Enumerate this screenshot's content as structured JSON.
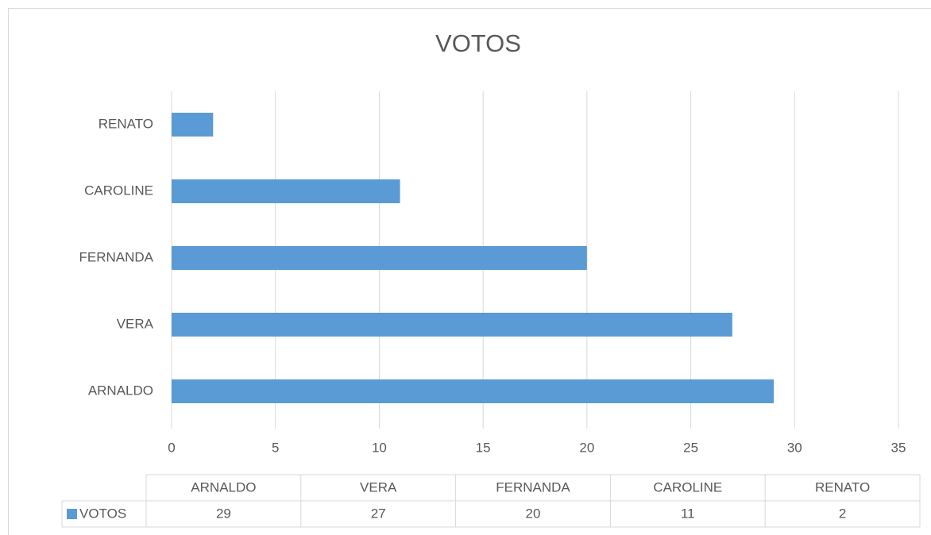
{
  "chart_data": {
    "type": "bar",
    "orientation": "horizontal",
    "title": "VOTOS",
    "categories": [
      "ARNALDO",
      "VERA",
      "FERNANDA",
      "CAROLINE",
      "RENATO"
    ],
    "series": [
      {
        "name": "VOTOS",
        "color": "#5b9bd5",
        "values": [
          29,
          27,
          20,
          11,
          2
        ]
      }
    ],
    "xlim": [
      0,
      35
    ],
    "xticks": [
      0,
      5,
      10,
      15,
      20,
      25,
      30,
      35
    ],
    "grid": true,
    "data_table": true
  }
}
